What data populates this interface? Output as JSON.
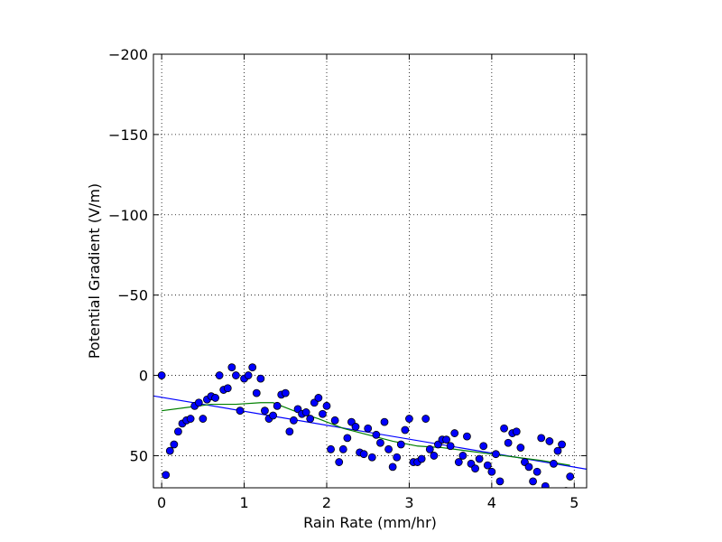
{
  "chart_data": {
    "type": "scatter",
    "title": "",
    "xlabel": "Rain Rate (mm/hr)",
    "ylabel": "Potential Gradient (V/m)",
    "xlim": [
      -0.1,
      5.15
    ],
    "ylim": [
      70,
      -200
    ],
    "y_inverted": true,
    "grid": true,
    "x_ticks": [
      0,
      1,
      2,
      3,
      4,
      5
    ],
    "x_tick_labels": [
      "0",
      "1",
      "2",
      "3",
      "4",
      "5"
    ],
    "y_ticks": [
      -200,
      -150,
      -100,
      -50,
      0,
      50
    ],
    "y_tick_labels": [
      "−200",
      "−150",
      "−100",
      "−50",
      "0",
      "50"
    ],
    "colors": {
      "points": "#0000ff",
      "fit_line": "#0000ff",
      "smooth_line": "#008000"
    },
    "points": {
      "x": [
        0.0,
        0.05,
        0.1,
        0.15,
        0.2,
        0.25,
        0.3,
        0.35,
        0.4,
        0.45,
        0.5,
        0.55,
        0.6,
        0.65,
        0.7,
        0.75,
        0.8,
        0.85,
        0.9,
        0.95,
        1.0,
        1.05,
        1.1,
        1.15,
        1.2,
        1.25,
        1.3,
        1.35,
        1.4,
        1.45,
        1.5,
        1.55,
        1.6,
        1.65,
        1.7,
        1.75,
        1.8,
        1.85,
        1.9,
        1.95,
        2.0,
        2.05,
        2.1,
        2.15,
        2.2,
        2.25,
        2.3,
        2.35,
        2.4,
        2.45,
        2.5,
        2.55,
        2.6,
        2.65,
        2.7,
        2.75,
        2.8,
        2.85,
        2.9,
        2.95,
        3.0,
        3.05,
        3.1,
        3.15,
        3.2,
        3.25,
        3.3,
        3.35,
        3.4,
        3.45,
        3.5,
        3.55,
        3.6,
        3.65,
        3.7,
        3.75,
        3.8,
        3.85,
        3.9,
        3.95,
        4.0,
        4.05,
        4.1,
        4.15,
        4.2,
        4.25,
        4.3,
        4.35,
        4.4,
        4.45,
        4.5,
        4.55,
        4.6,
        4.65,
        4.7,
        4.75,
        4.8,
        4.85,
        4.9,
        4.95
      ],
      "y": [
        0,
        62,
        47,
        43,
        35,
        30,
        28,
        27,
        19,
        17,
        27,
        15,
        13,
        14,
        0,
        9,
        8,
        -5,
        0,
        22,
        2,
        0,
        -5,
        11,
        2,
        22,
        27,
        25,
        19,
        12,
        11,
        35,
        28,
        21,
        24,
        23,
        27,
        17,
        14,
        24,
        19,
        46,
        28,
        54,
        46,
        39,
        29,
        32,
        48,
        49,
        33,
        51,
        37,
        42,
        29,
        46,
        57,
        51,
        43,
        34,
        27,
        54,
        54,
        52,
        27,
        46,
        50,
        43,
        40,
        40,
        44,
        36,
        54,
        50,
        38,
        55,
        58,
        52,
        44,
        56,
        60,
        49,
        66,
        33,
        42,
        36,
        35,
        45,
        54,
        57,
        66,
        60,
        39,
        69,
        41,
        55,
        47,
        43,
        72,
        63
      ]
    },
    "series": [
      {
        "type": "line",
        "x": [
          -0.1,
          5.15
        ],
        "y": [
          12.8,
          58.4
        ]
      },
      {
        "type": "line",
        "x": [
          0.0,
          0.3,
          0.6,
          0.9,
          1.2,
          1.35,
          1.6,
          1.9,
          2.2,
          2.5,
          2.8,
          3.1,
          3.4,
          3.7,
          4.0,
          4.3,
          4.6,
          4.95
        ],
        "y": [
          22,
          20,
          18,
          18,
          17,
          17,
          22,
          27,
          33,
          37,
          41,
          44,
          45,
          47,
          49,
          51,
          53,
          56
        ]
      }
    ]
  }
}
